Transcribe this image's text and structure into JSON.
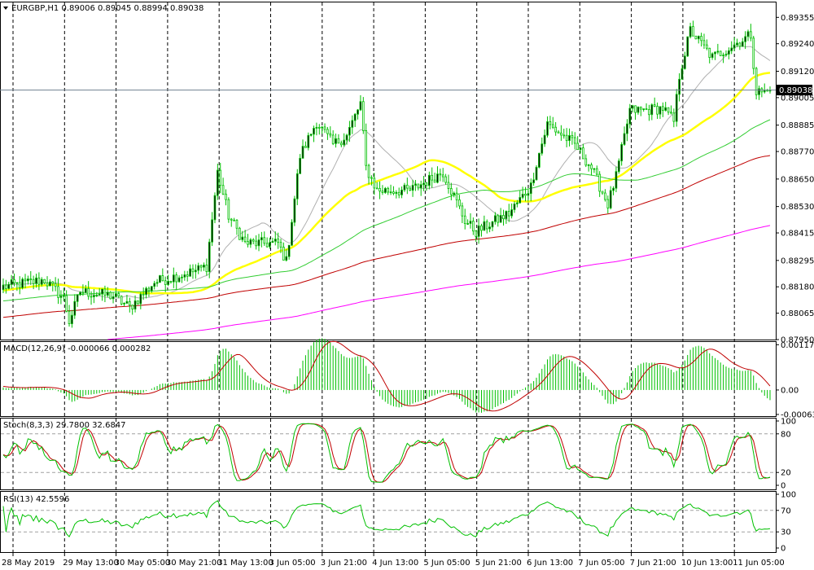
{
  "chart_data": [
    {
      "type": "candlestick",
      "title": "EURGBP,H1 0.89006 0.89045 0.88994 0.89038",
      "symbol": "EURGBP",
      "timeframe": "H1",
      "ohlc_readout": {
        "open": 0.89006,
        "high": 0.89045,
        "low": 0.88994,
        "close": 0.89038
      },
      "current_price": 0.89038,
      "current_price_label": "0.89038",
      "ylim": [
        0.8795,
        0.8942
      ],
      "y_ticks": [
        "0.89355",
        "0.89240",
        "0.89120",
        "0.89005",
        "0.88885",
        "0.88770",
        "0.88650",
        "0.88530",
        "0.88415",
        "0.88295",
        "0.88180",
        "0.88065",
        "0.87950"
      ],
      "grid": "vertical-dashed",
      "candle_color": "#00c000",
      "bars": 280,
      "anchors": [
        [
          0,
          0.8818
        ],
        [
          15,
          0.8821
        ],
        [
          22,
          0.8813
        ],
        [
          24,
          0.8803
        ],
        [
          28,
          0.8816
        ],
        [
          40,
          0.8814
        ],
        [
          46,
          0.8809
        ],
        [
          55,
          0.882
        ],
        [
          70,
          0.8825
        ],
        [
          74,
          0.8827
        ],
        [
          78,
          0.8868
        ],
        [
          82,
          0.8849
        ],
        [
          88,
          0.8837
        ],
        [
          100,
          0.8837
        ],
        [
          103,
          0.8829
        ],
        [
          108,
          0.8875
        ],
        [
          114,
          0.889
        ],
        [
          120,
          0.888
        ],
        [
          125,
          0.8884
        ],
        [
          130,
          0.8898
        ],
        [
          132,
          0.887
        ],
        [
          136,
          0.886
        ],
        [
          148,
          0.886
        ],
        [
          160,
          0.8868
        ],
        [
          168,
          0.8847
        ],
        [
          172,
          0.8842
        ],
        [
          184,
          0.885
        ],
        [
          192,
          0.8862
        ],
        [
          194,
          0.8872
        ],
        [
          198,
          0.8889
        ],
        [
          208,
          0.888
        ],
        [
          214,
          0.887
        ],
        [
          220,
          0.8854
        ],
        [
          223,
          0.8866
        ],
        [
          228,
          0.8895
        ],
        [
          234,
          0.8895
        ],
        [
          240,
          0.8896
        ],
        [
          244,
          0.889
        ],
        [
          246,
          0.891
        ],
        [
          250,
          0.893
        ],
        [
          258,
          0.8918
        ],
        [
          268,
          0.8925
        ],
        [
          272,
          0.8928
        ],
        [
          274,
          0.8903
        ],
        [
          280,
          0.8903
        ]
      ],
      "moving_averages": [
        {
          "period": 20,
          "color": "#b0b0b0"
        },
        {
          "period": 50,
          "color": "#ffff00"
        },
        {
          "period": 100,
          "color": "#32cd32"
        },
        {
          "period": 200,
          "color": "#c00000"
        },
        {
          "period": 400,
          "color": "#ff00ff"
        }
      ],
      "x_ticks": [
        "28 May 2019",
        "29 May 13:00",
        "30 May 05:00",
        "30 May 21:00",
        "31 May 13:00",
        "3 Jun 05:00",
        "3 Jun 21:00",
        "4 Jun 13:00",
        "5 Jun 05:00",
        "5 Jun 21:00",
        "6 Jun 13:00",
        "7 Jun 05:00",
        "7 Jun 21:00",
        "10 Jun 13:00",
        "11 Jun 05:00"
      ]
    },
    {
      "type": "bar",
      "title": "MACD(12,26,9) -0.000066 0.000282",
      "params": "12,26,9",
      "macd_value": -6.6e-05,
      "signal_value": 0.000282,
      "ylim": [
        -0.00068,
        0.00125
      ],
      "y_ticks": [
        "0.001179",
        "0.00",
        "-0.000637"
      ],
      "histogram_color": "#00c000",
      "signal_color": "#c00000"
    },
    {
      "type": "line",
      "title": "Stoch(8,3,3) 29.7800 32.6847",
      "params": "8,3,3",
      "main_value": 29.78,
      "signal_value": 32.6847,
      "ylim": [
        0,
        100
      ],
      "y_ticks": [
        "100",
        "80",
        "20",
        "0"
      ],
      "levels": [
        20,
        80
      ],
      "main_color": "#00c000",
      "signal_color": "#c00000"
    },
    {
      "type": "line",
      "title": "RSI(13) 42.5596",
      "period": 13,
      "value": 42.5596,
      "ylim": [
        0,
        100
      ],
      "y_ticks": [
        "100",
        "70",
        "30",
        "0"
      ],
      "levels": [
        30,
        70
      ],
      "color": "#00c000"
    }
  ]
}
